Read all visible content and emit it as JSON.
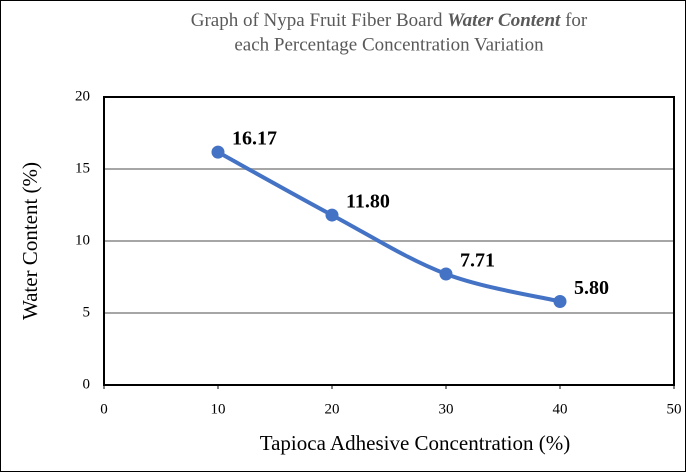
{
  "chart_data": {
    "type": "line",
    "title": [
      "Graph of Nypa Fruit Fiber Board",
      "Water Content",
      "for",
      "each Percentage Concentration Variation"
    ],
    "xlabel": "Tapioca Adhesive Concentration (%)",
    "ylabel": "Water Content (%)",
    "x": [
      10,
      20,
      30,
      40
    ],
    "series": [
      {
        "name": "Water Content",
        "color": "#4472c4",
        "values": [
          16.17,
          11.8,
          7.71,
          5.8
        ],
        "value_labels": [
          "16.17",
          "11.80",
          "7.71",
          "5.80"
        ]
      }
    ],
    "xlim": [
      0,
      50
    ],
    "xticks": [
      0,
      10,
      20,
      30,
      40,
      50
    ],
    "ylim": [
      0,
      20
    ],
    "yticks": [
      0,
      5,
      10,
      15,
      20
    ],
    "grid": true,
    "smooth": true
  }
}
